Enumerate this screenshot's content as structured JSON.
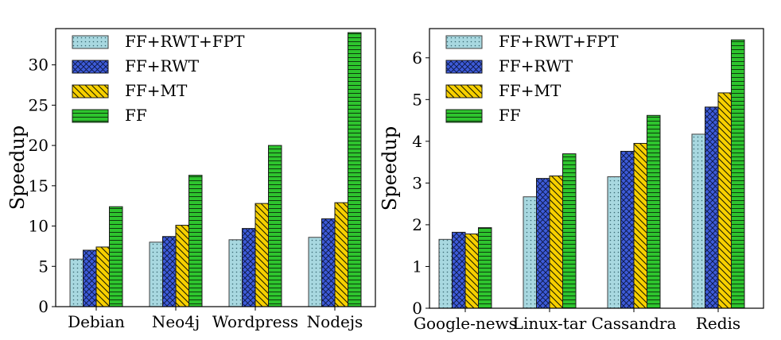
{
  "chart_data": [
    {
      "type": "bar",
      "categories": [
        "Debian",
        "Neo4j",
        "Wordpress",
        "Nodejs"
      ],
      "ylabel": "Speedup",
      "xlabel": "",
      "ylim": [
        0,
        34.5
      ],
      "yticks": [
        "0",
        "5",
        "10",
        "15",
        "20",
        "25",
        "30"
      ],
      "legend_position": "top-left",
      "series": [
        {
          "name": "FF+RWT+FPT",
          "values": [
            5.9,
            8.0,
            8.3,
            8.6
          ],
          "color": "#a8d8e0",
          "pattern": "dots"
        },
        {
          "name": "FF+RWT",
          "values": [
            7.0,
            8.7,
            9.7,
            10.9
          ],
          "color": "#3d5bd9",
          "pattern": "crosshatch"
        },
        {
          "name": "FF+MT",
          "values": [
            7.4,
            10.1,
            12.8,
            12.9
          ],
          "color": "#f7d000",
          "pattern": "diagonal"
        },
        {
          "name": "FF",
          "values": [
            12.4,
            16.3,
            20.0,
            34.0
          ],
          "color": "#2ec42e",
          "pattern": "horizontal"
        }
      ]
    },
    {
      "type": "bar",
      "categories": [
        "Google-news",
        "Linux-tar",
        "Cassandra",
        "Redis"
      ],
      "ylabel": "Speedup",
      "xlabel": "",
      "ylim": [
        0,
        6.7
      ],
      "yticks": [
        "0",
        "1",
        "2",
        "3",
        "4",
        "5",
        "6"
      ],
      "legend_position": "top-left",
      "series": [
        {
          "name": "FF+RWT+FPT",
          "values": [
            1.65,
            2.67,
            3.15,
            4.17
          ],
          "color": "#a8d8e0",
          "pattern": "dots"
        },
        {
          "name": "FF+RWT",
          "values": [
            1.82,
            3.11,
            3.76,
            4.82
          ],
          "color": "#3d5bd9",
          "pattern": "crosshatch"
        },
        {
          "name": "FF+MT",
          "values": [
            1.78,
            3.17,
            3.95,
            5.16
          ],
          "color": "#f7d000",
          "pattern": "diagonal"
        },
        {
          "name": "FF",
          "values": [
            1.93,
            3.7,
            4.62,
            6.43
          ],
          "color": "#2ec42e",
          "pattern": "horizontal"
        }
      ]
    }
  ]
}
